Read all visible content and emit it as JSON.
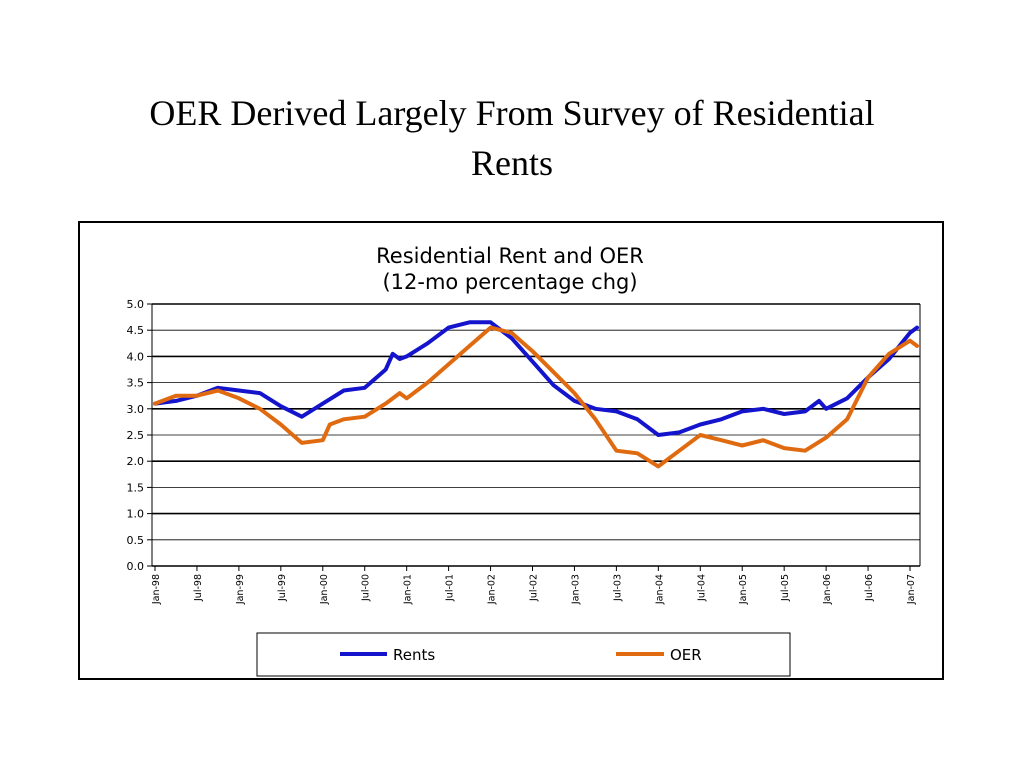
{
  "slide": {
    "title_line1": "OER Derived Largely From Survey of Residential",
    "title_line2": "Rents"
  },
  "chart_data": {
    "type": "line",
    "title": "Residential Rent and OER",
    "subtitle": "(12-mo percentage chg)",
    "xlabel": "",
    "ylabel": "",
    "ylim": [
      0,
      5
    ],
    "y_ticks": [
      "0.0",
      "0.5",
      "1.0",
      "1.5",
      "2.0",
      "2.5",
      "3.0",
      "3.5",
      "4.0",
      "4.5",
      "5.0"
    ],
    "x_tick_labels": [
      "Jan-98",
      "Jul-98",
      "Jan-99",
      "Jul-99",
      "Jan-00",
      "Jul-00",
      "Jan-01",
      "Jul-01",
      "Jan-02",
      "Jul-02",
      "Jan-03",
      "Jul-03",
      "Jan-04",
      "Jul-04",
      "Jan-05",
      "Jul-05",
      "Jan-06",
      "Jul-06",
      "Jan-07"
    ],
    "x_range": [
      "Jan-98",
      "Feb-07"
    ],
    "grid": "horizontal",
    "legend_position": "bottom",
    "series": [
      {
        "name": "Rents",
        "color": "#1414CC",
        "points": [
          [
            "Jan-98",
            3.1
          ],
          [
            "Apr-98",
            3.15
          ],
          [
            "Jul-98",
            3.25
          ],
          [
            "Oct-98",
            3.4
          ],
          [
            "Jan-99",
            3.35
          ],
          [
            "Apr-99",
            3.3
          ],
          [
            "Jul-99",
            3.05
          ],
          [
            "Oct-99",
            2.85
          ],
          [
            "Jan-00",
            3.1
          ],
          [
            "Apr-00",
            3.35
          ],
          [
            "Jul-00",
            3.4
          ],
          [
            "Oct-00",
            3.75
          ],
          [
            "Nov-00",
            4.05
          ],
          [
            "Dec-00",
            3.95
          ],
          [
            "Jan-01",
            4.0
          ],
          [
            "Apr-01",
            4.25
          ],
          [
            "Jul-01",
            4.55
          ],
          [
            "Oct-01",
            4.65
          ],
          [
            "Jan-02",
            4.65
          ],
          [
            "Apr-02",
            4.35
          ],
          [
            "Jul-02",
            3.9
          ],
          [
            "Oct-02",
            3.45
          ],
          [
            "Jan-03",
            3.15
          ],
          [
            "Apr-03",
            3.0
          ],
          [
            "Jul-03",
            2.95
          ],
          [
            "Oct-03",
            2.8
          ],
          [
            "Jan-04",
            2.5
          ],
          [
            "Apr-04",
            2.55
          ],
          [
            "Jul-04",
            2.7
          ],
          [
            "Oct-04",
            2.8
          ],
          [
            "Jan-05",
            2.95
          ],
          [
            "Apr-05",
            3.0
          ],
          [
            "Jul-05",
            2.9
          ],
          [
            "Oct-05",
            2.95
          ],
          [
            "Dec-05",
            3.15
          ],
          [
            "Jan-06",
            3.0
          ],
          [
            "Apr-06",
            3.2
          ],
          [
            "Jul-06",
            3.6
          ],
          [
            "Oct-06",
            3.95
          ],
          [
            "Jan-07",
            4.45
          ],
          [
            "Feb-07",
            4.55
          ]
        ]
      },
      {
        "name": "OER",
        "color": "#E06A10",
        "points": [
          [
            "Jan-98",
            3.1
          ],
          [
            "Apr-98",
            3.25
          ],
          [
            "Jul-98",
            3.25
          ],
          [
            "Oct-98",
            3.35
          ],
          [
            "Jan-99",
            3.2
          ],
          [
            "Apr-99",
            3.0
          ],
          [
            "Jul-99",
            2.7
          ],
          [
            "Oct-99",
            2.35
          ],
          [
            "Jan-00",
            2.4
          ],
          [
            "Feb-00",
            2.7
          ],
          [
            "Apr-00",
            2.8
          ],
          [
            "Jul-00",
            2.85
          ],
          [
            "Oct-00",
            3.1
          ],
          [
            "Dec-00",
            3.3
          ],
          [
            "Jan-01",
            3.2
          ],
          [
            "Apr-01",
            3.5
          ],
          [
            "Jul-01",
            3.85
          ],
          [
            "Oct-01",
            4.2
          ],
          [
            "Jan-02",
            4.55
          ],
          [
            "Apr-02",
            4.45
          ],
          [
            "Jul-02",
            4.1
          ],
          [
            "Oct-02",
            3.7
          ],
          [
            "Jan-03",
            3.3
          ],
          [
            "Apr-03",
            2.8
          ],
          [
            "Jul-03",
            2.2
          ],
          [
            "Oct-03",
            2.15
          ],
          [
            "Jan-04",
            1.9
          ],
          [
            "Apr-04",
            2.2
          ],
          [
            "Jul-04",
            2.5
          ],
          [
            "Oct-04",
            2.4
          ],
          [
            "Jan-05",
            2.3
          ],
          [
            "Apr-05",
            2.4
          ],
          [
            "Jul-05",
            2.25
          ],
          [
            "Oct-05",
            2.2
          ],
          [
            "Jan-06",
            2.45
          ],
          [
            "Apr-06",
            2.8
          ],
          [
            "Jul-06",
            3.6
          ],
          [
            "Oct-06",
            4.05
          ],
          [
            "Jan-07",
            4.3
          ],
          [
            "Feb-07",
            4.2
          ]
        ]
      }
    ]
  }
}
